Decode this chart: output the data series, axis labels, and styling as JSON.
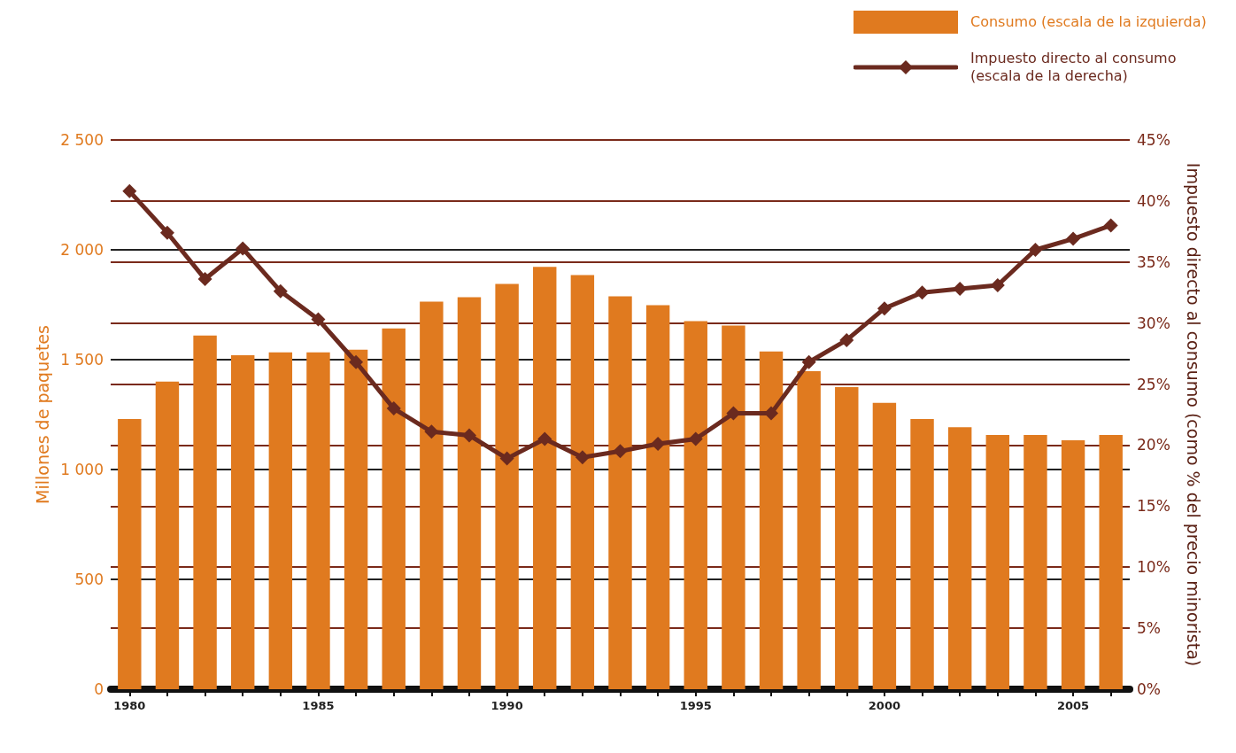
{
  "chart_data": {
    "type": "bar",
    "categories": [
      "1980",
      null,
      null,
      null,
      null,
      "1985",
      null,
      null,
      null,
      null,
      "1990",
      null,
      null,
      null,
      null,
      "1995",
      null,
      null,
      null,
      null,
      "2000",
      null,
      null,
      null,
      null,
      "2005",
      null
    ],
    "series": [
      {
        "name": "Consumo (escala de la izquierda)",
        "color": "#e07a1f",
        "values": [
          1230,
          1400,
          1610,
          1520,
          1533,
          1533,
          1545,
          1642,
          1764,
          1784,
          1845,
          1922,
          1885,
          1788,
          1748,
          1675,
          1655,
          1537,
          1448,
          1375,
          1303,
          1230,
          1193,
          1157,
          1157,
          1133,
          1157
        ]
      },
      {
        "name": "Impuesto directo al consumo (escala de la derecha)",
        "type": "line",
        "axis": "y2",
        "color": "#6b2a1f",
        "values": [
          40.8,
          37.4,
          33.6,
          36.1,
          32.6,
          30.3,
          26.8,
          23.0,
          21.1,
          20.8,
          18.9,
          20.5,
          19.0,
          19.5,
          20.1,
          20.5,
          22.6,
          22.6,
          26.8,
          28.6,
          31.2,
          32.5,
          32.8,
          33.1,
          36.0,
          36.9,
          38.0
        ]
      }
    ],
    "ylabel": "Millones de paquetes",
    "y2label": "Impuesto directo al consumo (como % del precio minorista)",
    "ylim": [
      0,
      2500
    ],
    "yticks": [
      0,
      500,
      {
        "value": 1000,
        "label": "1 000"
      },
      {
        "value": 1500,
        "label": "1 500"
      },
      {
        "value": 2000,
        "label": "2 000"
      },
      {
        "value": 2500,
        "label": "2 500"
      }
    ],
    "y2lim": [
      0,
      45
    ],
    "y2ticks": [
      {
        "value": 0,
        "label": "0%"
      },
      {
        "value": 5,
        "label": "5%"
      },
      {
        "value": 10,
        "label": "10%"
      },
      {
        "value": 15,
        "label": "15%"
      },
      {
        "value": 20,
        "label": "20%"
      },
      {
        "value": 25,
        "label": "25%"
      },
      {
        "value": 30,
        "label": "30%"
      },
      {
        "value": 35,
        "label": "35%"
      },
      {
        "value": 40,
        "label": "40%"
      },
      {
        "value": 45,
        "label": "45%"
      }
    ],
    "grid": true,
    "legend": "top right",
    "marker": "diamond",
    "line_style": "solid"
  }
}
